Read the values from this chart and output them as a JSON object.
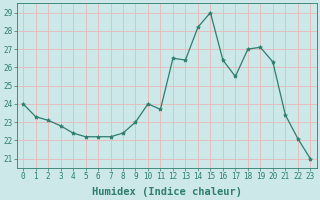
{
  "x": [
    0,
    1,
    2,
    3,
    4,
    5,
    6,
    7,
    8,
    9,
    10,
    11,
    12,
    13,
    14,
    15,
    16,
    17,
    18,
    19,
    20,
    21,
    22,
    23
  ],
  "y": [
    24.0,
    23.3,
    23.1,
    22.8,
    22.4,
    22.2,
    22.2,
    22.2,
    22.4,
    23.0,
    24.0,
    23.7,
    26.5,
    26.4,
    28.2,
    29.0,
    26.4,
    25.5,
    27.0,
    27.1,
    26.3,
    23.4,
    22.1,
    21.0
  ],
  "line_color": "#2e7d6e",
  "marker": "*",
  "marker_size": 3,
  "xlabel": "Humidex (Indice chaleur)",
  "ylim": [
    20.5,
    29.5
  ],
  "xlim": [
    -0.5,
    23.5
  ],
  "yticks": [
    21,
    22,
    23,
    24,
    25,
    26,
    27,
    28,
    29
  ],
  "xticks": [
    0,
    1,
    2,
    3,
    4,
    5,
    6,
    7,
    8,
    9,
    10,
    11,
    12,
    13,
    14,
    15,
    16,
    17,
    18,
    19,
    20,
    21,
    22,
    23
  ],
  "bg_color": "#cce8e8",
  "grid_color": "#e8b8b8",
  "tick_color": "#2e7d6e",
  "label_color": "#2e7d6e",
  "tick_fontsize": 5.5,
  "xlabel_fontsize": 7.5
}
